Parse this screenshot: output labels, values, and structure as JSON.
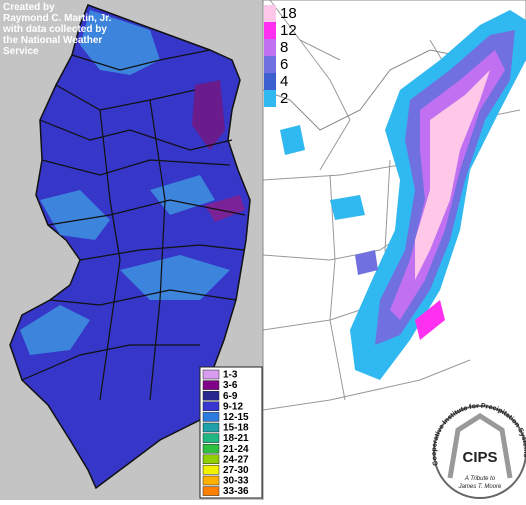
{
  "left_map": {
    "credit": [
      "Created by",
      "Raymond C. Martin, Jr.",
      "with data collected by",
      "the National Weather",
      "Service"
    ],
    "legend": [
      {
        "label": "1-3",
        "color": "#d89cf0"
      },
      {
        "label": "3-6",
        "color": "#800088"
      },
      {
        "label": "6-9",
        "color": "#282890"
      },
      {
        "label": "9-12",
        "color": "#3838d0"
      },
      {
        "label": "12-15",
        "color": "#2c7ce0"
      },
      {
        "label": "15-18",
        "color": "#20a0a8"
      },
      {
        "label": "18-21",
        "color": "#20b880"
      },
      {
        "label": "21-24",
        "color": "#30c040"
      },
      {
        "label": "24-27",
        "color": "#90d000"
      },
      {
        "label": "27-30",
        "color": "#f0f000"
      },
      {
        "label": "30-33",
        "color": "#ffb000"
      },
      {
        "label": "33-36",
        "color": "#ff8000"
      }
    ]
  },
  "right_map": {
    "legend": [
      {
        "label": 18,
        "color": "#ffc8e8"
      },
      {
        "label": 12,
        "color": "#ff30f0"
      },
      {
        "label": 8,
        "color": "#c070f0"
      },
      {
        "label": 6,
        "color": "#7070e0"
      },
      {
        "label": 4,
        "color": "#3c60d0"
      },
      {
        "label": 2,
        "color": "#30b8f0"
      }
    ],
    "logo": {
      "title": "CIPS",
      "arc_text": "Cooperative Institute for Precipitation Systems",
      "tribute_1": "A Tribute to",
      "tribute_2": "James T. Moore"
    }
  }
}
